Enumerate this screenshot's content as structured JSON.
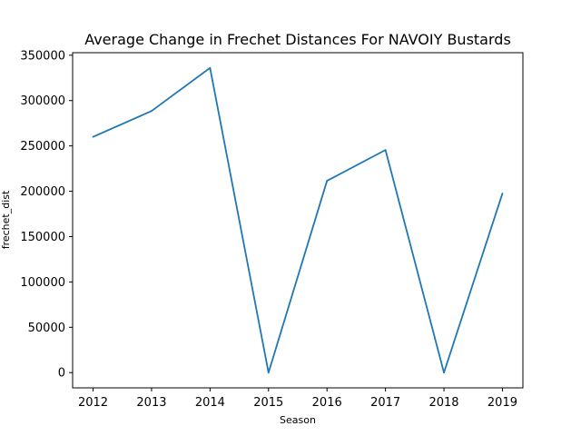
{
  "chart_data": {
    "type": "line",
    "title": "Average Change in Frechet Distances For NAVOIY Bustards",
    "xlabel": "Season",
    "ylabel": "frechet_dist",
    "x": [
      2012,
      2013,
      2014,
      2015,
      2016,
      2017,
      2018,
      2019
    ],
    "series": [
      {
        "values": [
          260000,
          288500,
          336000,
          0,
          211500,
          245500,
          0,
          197500
        ],
        "color": "#1f77b4"
      }
    ],
    "xlim": [
      2011.65,
      2019.35
    ],
    "ylim": [
      -16800,
      352800
    ],
    "yticks": [
      0,
      50000,
      100000,
      150000,
      200000,
      250000,
      300000,
      350000
    ],
    "xticks": [
      2012,
      2013,
      2014,
      2015,
      2016,
      2017,
      2018,
      2019
    ],
    "grid": false,
    "legend": "none"
  }
}
